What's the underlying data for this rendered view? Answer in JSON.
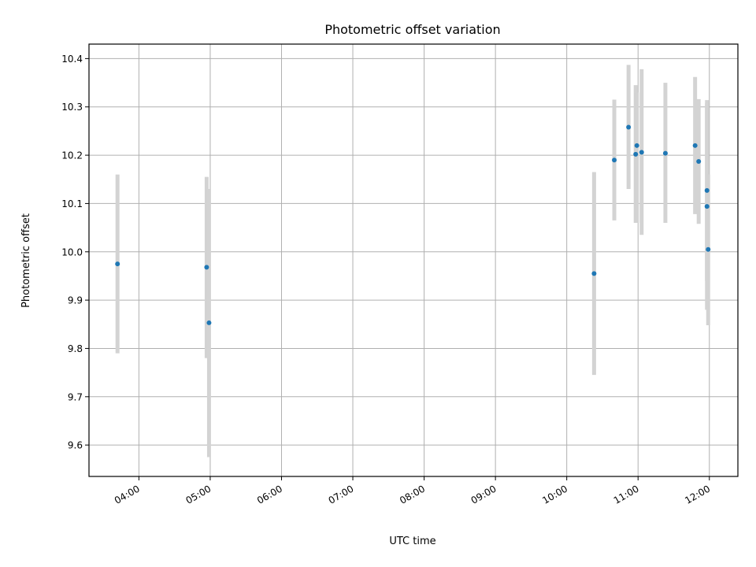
{
  "chart_data": {
    "type": "scatter",
    "title": "Photometric offset variation",
    "xlabel": "UTC time",
    "ylabel": "Photometric offset",
    "x_ticks": [
      "04:00",
      "05:00",
      "06:00",
      "07:00",
      "08:00",
      "09:00",
      "10:00",
      "11:00",
      "12:00"
    ],
    "y_ticks": [
      "9.6",
      "9.7",
      "9.8",
      "9.9",
      "10.0",
      "10.1",
      "10.2",
      "10.3",
      "10.4"
    ],
    "xlim": [
      "03:18",
      "12:24"
    ],
    "ylim": [
      9.535,
      10.43
    ],
    "grid": true,
    "error_bar_color": "#d3d3d3",
    "point_color": "#1f77b4",
    "points": [
      {
        "x": "03:42",
        "y": 9.975,
        "err_low": 9.79,
        "err_high": 10.16
      },
      {
        "x": "04:57",
        "y": 9.968,
        "err_low": 9.78,
        "err_high": 10.155
      },
      {
        "x": "04:59",
        "y": 9.853,
        "err_low": 9.575,
        "err_high": 10.13
      },
      {
        "x": "10:23",
        "y": 9.955,
        "err_low": 9.745,
        "err_high": 10.165
      },
      {
        "x": "10:40",
        "y": 10.19,
        "err_low": 10.065,
        "err_high": 10.315
      },
      {
        "x": "10:52",
        "y": 10.258,
        "err_low": 10.13,
        "err_high": 10.387
      },
      {
        "x": "10:58",
        "y": 10.202,
        "err_low": 10.06,
        "err_high": 10.345
      },
      {
        "x": "10:59",
        "y": 10.22,
        "err_low": 10.06,
        "err_high": 10.33
      },
      {
        "x": "11:03",
        "y": 10.206,
        "err_low": 10.035,
        "err_high": 10.378
      },
      {
        "x": "11:23",
        "y": 10.204,
        "err_low": 10.06,
        "err_high": 10.35
      },
      {
        "x": "11:48",
        "y": 10.22,
        "err_low": 10.078,
        "err_high": 10.362
      },
      {
        "x": "11:51",
        "y": 10.187,
        "err_low": 10.058,
        "err_high": 10.316
      },
      {
        "x": "11:58",
        "y": 10.127,
        "err_low": 9.94,
        "err_high": 10.314
      },
      {
        "x": "11:58",
        "y": 10.094,
        "err_low": 9.88,
        "err_high": 10.308
      },
      {
        "x": "11:59",
        "y": 10.005,
        "err_low": 9.848,
        "err_high": 10.16
      }
    ]
  }
}
